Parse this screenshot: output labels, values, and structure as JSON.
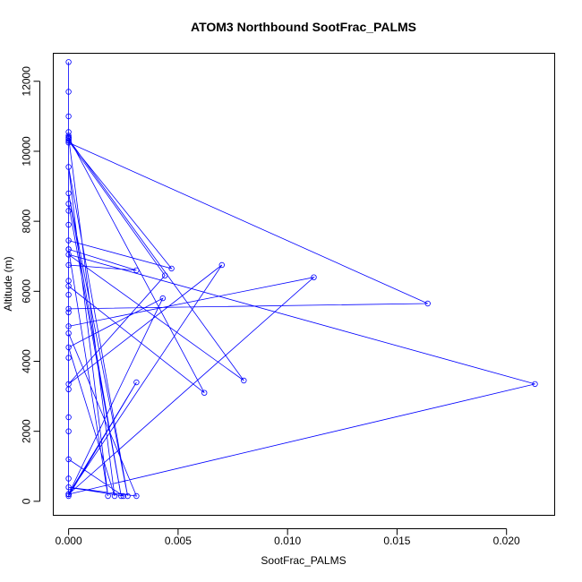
{
  "chart_data": {
    "type": "line",
    "title": "ATOM3 Northbound SootFrac_PALMS",
    "xlabel": "SootFrac_PALMS",
    "ylabel": "Altitude (m)",
    "xlim": [
      -0.0007,
      0.0222
    ],
    "ylim": [
      -400,
      12800
    ],
    "x_ticks": [
      0.0,
      0.005,
      0.01,
      0.015,
      0.02
    ],
    "x_tick_labels": [
      "0.000",
      "0.005",
      "0.010",
      "0.015",
      "0.020"
    ],
    "y_ticks": [
      0,
      2000,
      4000,
      6000,
      8000,
      10000,
      12000
    ],
    "y_tick_labels": [
      "0",
      "2000",
      "4000",
      "6000",
      "8000",
      "10000",
      "12000"
    ],
    "grid": false,
    "line_color": "#0000ff",
    "marker": "open-circle",
    "series": [
      {
        "x": [
          0,
          0,
          0,
          0,
          0,
          0,
          0,
          0,
          0,
          0,
          0.0164,
          0,
          0,
          0.0031,
          0,
          0.0025,
          0,
          0,
          0.0062,
          0,
          0.0021,
          0,
          0.0043,
          0,
          0,
          0.008,
          0,
          0.0213,
          0,
          0,
          0.0112,
          0,
          0,
          0.0031,
          0,
          0.007,
          0,
          0.0044,
          0,
          0.0047,
          0,
          0,
          0.0031,
          0,
          0.0018,
          0,
          0.0027,
          0,
          0.0024,
          0,
          0,
          0,
          0,
          0,
          0,
          0,
          0,
          0,
          0,
          0,
          0
        ],
        "y": [
          12550,
          11700,
          11000,
          10550,
          10450,
          10400,
          10380,
          10350,
          10300,
          10250,
          5650,
          5500,
          4800,
          150,
          400,
          150,
          1200,
          6150,
          3100,
          10400,
          150,
          4400,
          5800,
          200,
          10350,
          3450,
          7050,
          3350,
          200,
          5000,
          6400,
          200,
          150,
          3400,
          200,
          6750,
          3350,
          6450,
          10300,
          6650,
          7450,
          6750,
          6600,
          7200,
          150,
          9550,
          150,
          8800,
          150,
          8500,
          8300,
          7900,
          7200,
          6300,
          5900,
          5400,
          4100,
          3200,
          2400,
          2000,
          650
        ]
      }
    ]
  }
}
